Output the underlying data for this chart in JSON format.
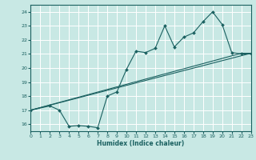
{
  "title": "",
  "xlabel": "Humidex (Indice chaleur)",
  "xlim": [
    0,
    23
  ],
  "ylim": [
    15.5,
    24.5
  ],
  "xticks": [
    0,
    1,
    2,
    3,
    4,
    5,
    6,
    7,
    8,
    9,
    10,
    11,
    12,
    13,
    14,
    15,
    16,
    17,
    18,
    19,
    20,
    21,
    22,
    23
  ],
  "yticks": [
    16,
    17,
    18,
    19,
    20,
    21,
    22,
    23,
    24
  ],
  "bg_color": "#c8e8e4",
  "line_color": "#1a6060",
  "grid_color": "#ffffff",
  "line1_x": [
    0,
    2,
    3,
    4,
    5,
    6,
    7,
    8,
    9,
    10,
    11,
    12,
    13,
    14,
    15,
    16,
    17,
    18,
    19,
    20,
    21,
    22,
    23
  ],
  "line1_y": [
    17.0,
    17.3,
    17.0,
    15.85,
    15.9,
    15.85,
    15.75,
    18.0,
    18.3,
    19.9,
    21.2,
    21.1,
    21.4,
    23.0,
    21.5,
    22.2,
    22.5,
    23.3,
    24.0,
    23.1,
    21.1,
    21.0,
    21.0
  ],
  "line2_x": [
    0,
    22,
    23
  ],
  "line2_y": [
    17.0,
    21.05,
    21.05
  ],
  "line3_x": [
    0,
    23
  ],
  "line3_y": [
    17.0,
    21.05
  ]
}
